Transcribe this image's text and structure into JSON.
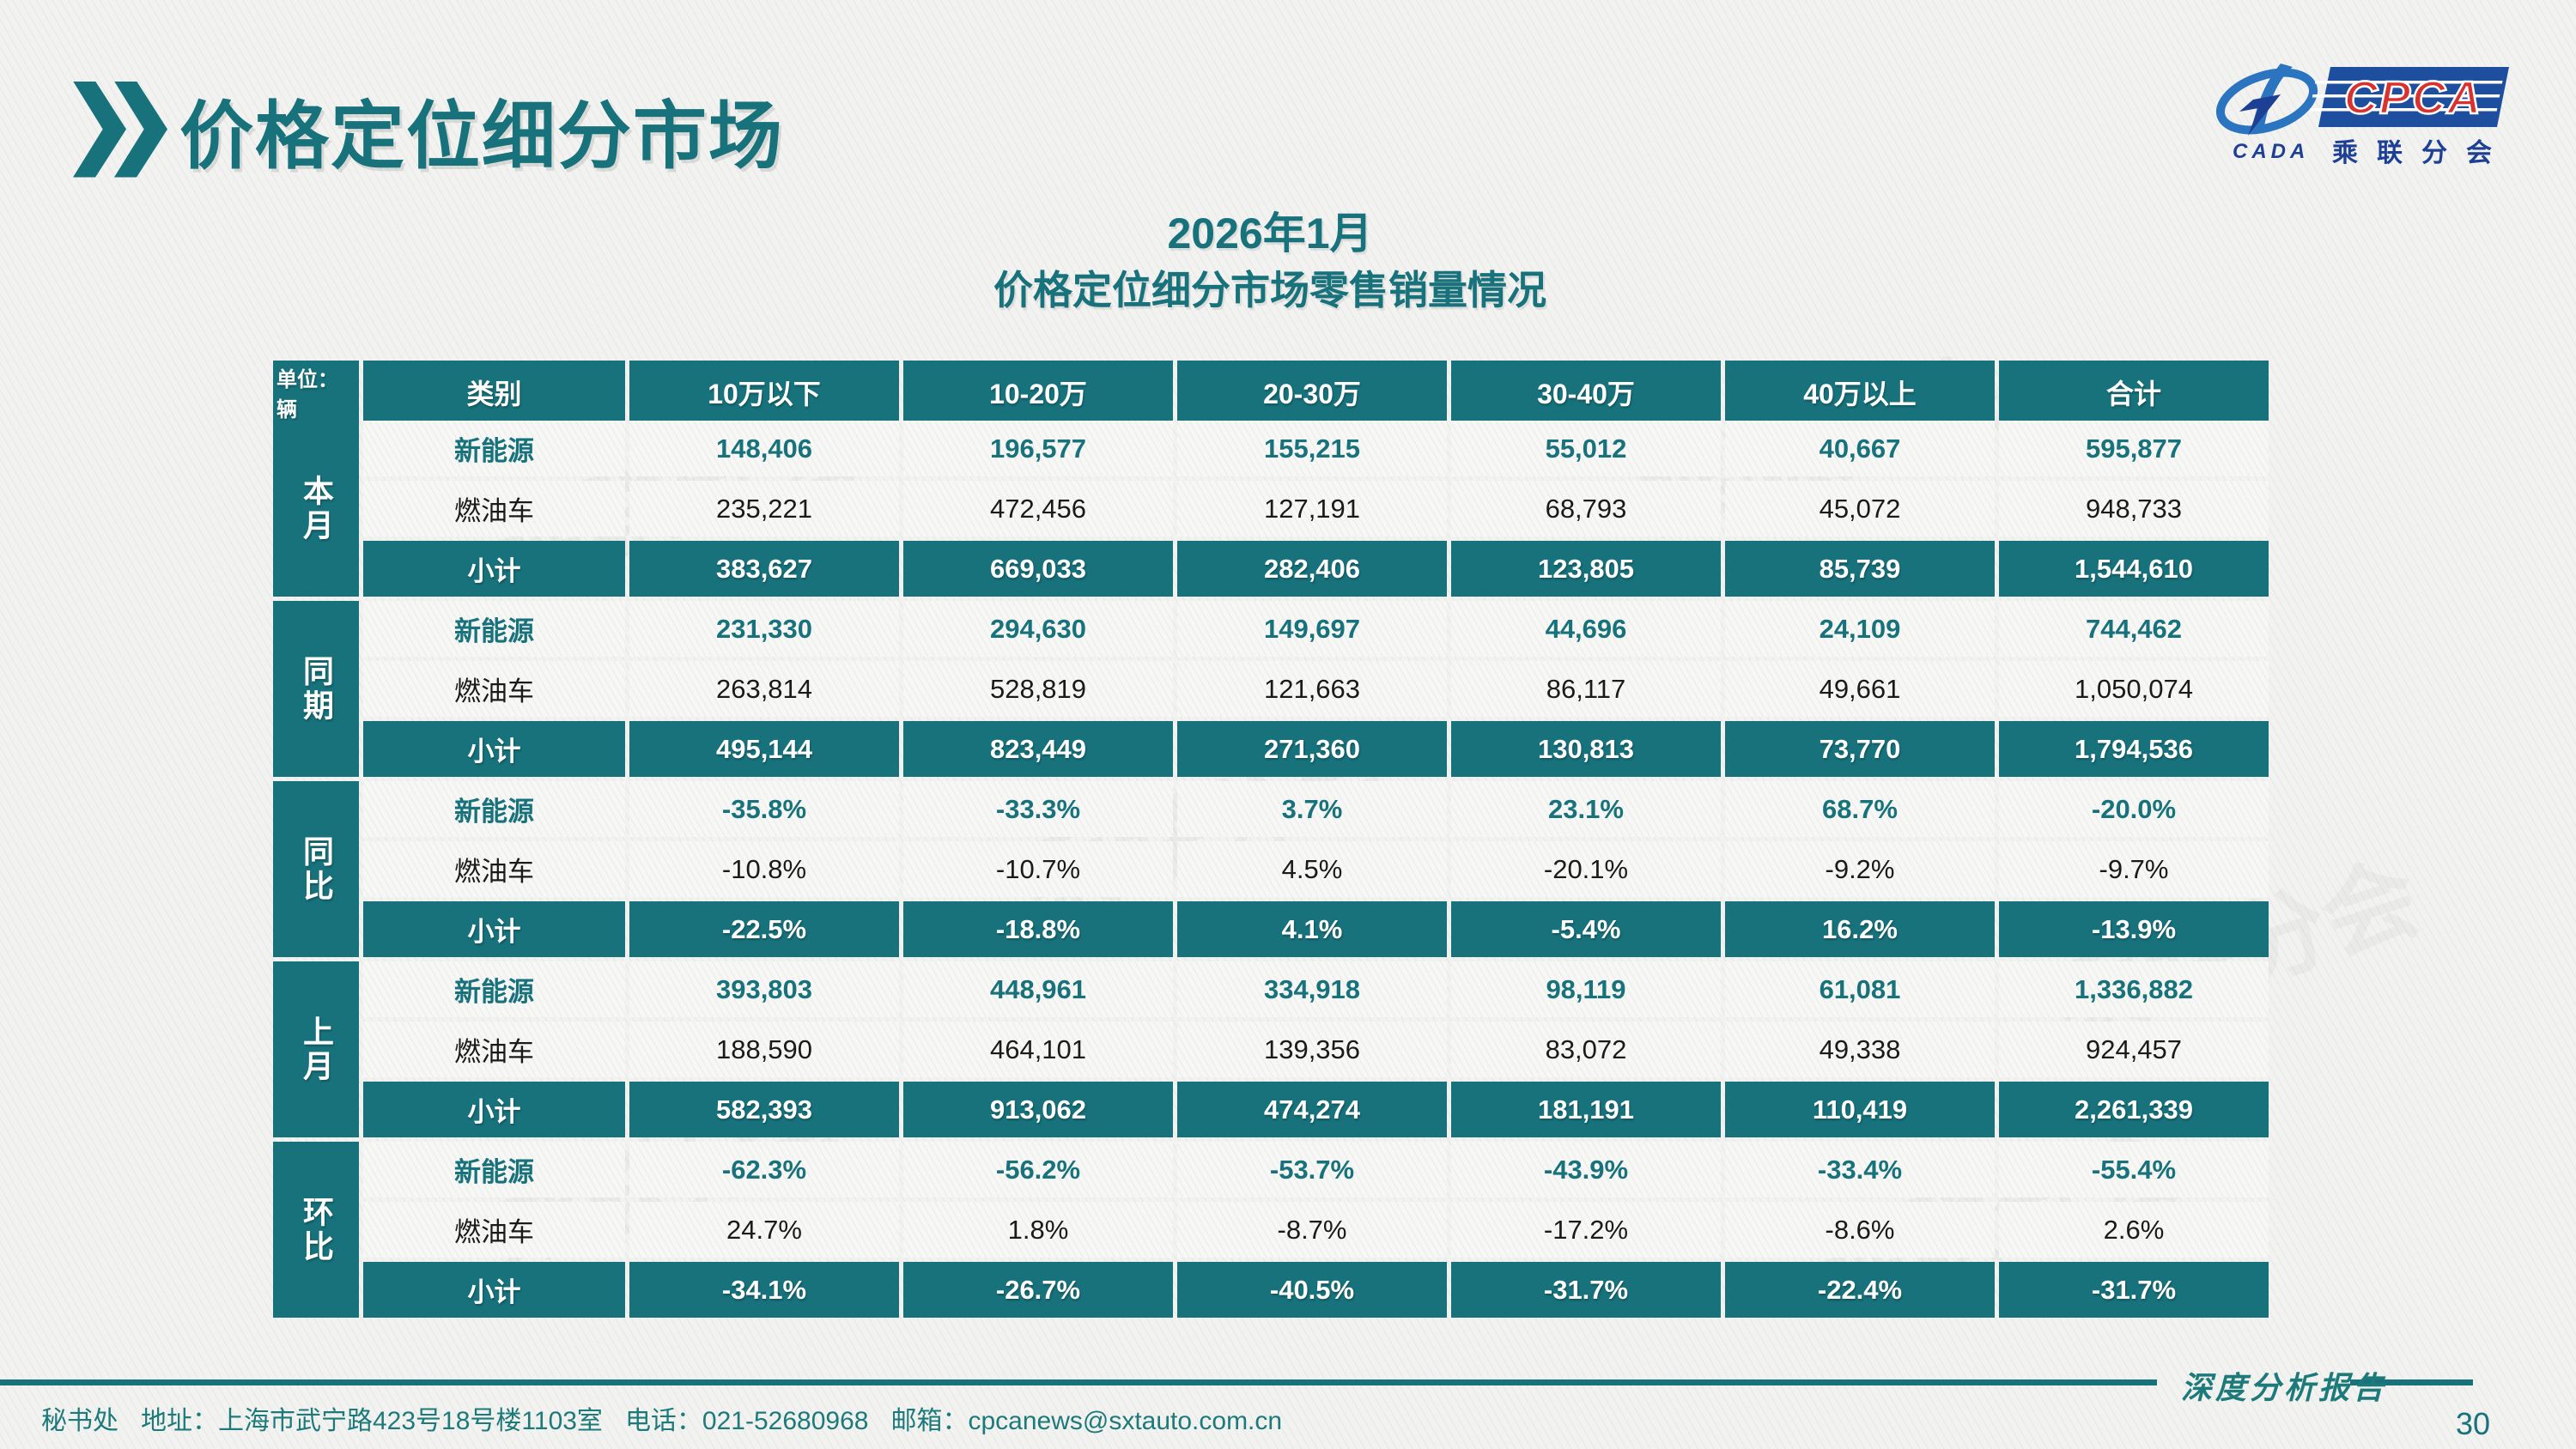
{
  "page": {
    "title": "价格定位细分市场",
    "report_label": "深度分析报告",
    "page_number": "30"
  },
  "logo": {
    "cada_text": "CADA",
    "cpca_text": "CPCA",
    "subtitle": "乘联分会"
  },
  "colors": {
    "accent_teal": "#17727c",
    "logo_blue": "#2b74c0",
    "logo_dark_blue": "#1d3f94",
    "logo_red": "#d93030",
    "ice_text": "#1a1a1a",
    "subtotal_text": "#ffffff"
  },
  "table": {
    "title_line1": "2026年1月",
    "title_line2": "价格定位细分市场零售销量情况",
    "unit_label": "单位：辆",
    "headers": [
      "类别",
      "10万以下",
      "10-20万",
      "20-30万",
      "30-40万",
      "40万以上",
      "合计"
    ],
    "groups": [
      {
        "label": "本月",
        "rows": [
          {
            "category": "新能源",
            "type": "nev",
            "values": [
              "148,406",
              "196,577",
              "155,215",
              "55,012",
              "40,667",
              "595,877"
            ]
          },
          {
            "category": "燃油车",
            "type": "ice",
            "values": [
              "235,221",
              "472,456",
              "127,191",
              "68,793",
              "45,072",
              "948,733"
            ]
          },
          {
            "category": "小计",
            "type": "subtotal",
            "values": [
              "383,627",
              "669,033",
              "282,406",
              "123,805",
              "85,739",
              "1,544,610"
            ]
          }
        ]
      },
      {
        "label": "同期",
        "rows": [
          {
            "category": "新能源",
            "type": "nev",
            "values": [
              "231,330",
              "294,630",
              "149,697",
              "44,696",
              "24,109",
              "744,462"
            ]
          },
          {
            "category": "燃油车",
            "type": "ice",
            "values": [
              "263,814",
              "528,819",
              "121,663",
              "86,117",
              "49,661",
              "1,050,074"
            ]
          },
          {
            "category": "小计",
            "type": "subtotal",
            "values": [
              "495,144",
              "823,449",
              "271,360",
              "130,813",
              "73,770",
              "1,794,536"
            ]
          }
        ]
      },
      {
        "label": "同比",
        "rows": [
          {
            "category": "新能源",
            "type": "nev",
            "values": [
              "-35.8%",
              "-33.3%",
              "3.7%",
              "23.1%",
              "68.7%",
              "-20.0%"
            ]
          },
          {
            "category": "燃油车",
            "type": "ice",
            "values": [
              "-10.8%",
              "-10.7%",
              "4.5%",
              "-20.1%",
              "-9.2%",
              "-9.7%"
            ]
          },
          {
            "category": "小计",
            "type": "subtotal",
            "values": [
              "-22.5%",
              "-18.8%",
              "4.1%",
              "-5.4%",
              "16.2%",
              "-13.9%"
            ]
          }
        ]
      },
      {
        "label": "上月",
        "rows": [
          {
            "category": "新能源",
            "type": "nev",
            "values": [
              "393,803",
              "448,961",
              "334,918",
              "98,119",
              "61,081",
              "1,336,882"
            ]
          },
          {
            "category": "燃油车",
            "type": "ice",
            "values": [
              "188,590",
              "464,101",
              "139,356",
              "83,072",
              "49,338",
              "924,457"
            ]
          },
          {
            "category": "小计",
            "type": "subtotal",
            "values": [
              "582,393",
              "913,062",
              "474,274",
              "181,191",
              "110,419",
              "2,261,339"
            ]
          }
        ]
      },
      {
        "label": "环比",
        "rows": [
          {
            "category": "新能源",
            "type": "nev",
            "values": [
              "-62.3%",
              "-56.2%",
              "-53.7%",
              "-43.9%",
              "-33.4%",
              "-55.4%"
            ]
          },
          {
            "category": "燃油车",
            "type": "ice",
            "values": [
              "24.7%",
              "1.8%",
              "-8.7%",
              "-17.2%",
              "-8.6%",
              "2.6%"
            ]
          },
          {
            "category": "小计",
            "type": "subtotal",
            "values": [
              "-34.1%",
              "-26.7%",
              "-40.5%",
              "-31.7%",
              "-22.4%",
              "-31.7%"
            ]
          }
        ]
      }
    ]
  },
  "footer": {
    "org": "秘书处",
    "address": "地址：上海市武宁路423号18号楼1103室",
    "phone": "电话：021-52680968",
    "email": "邮箱：cpcanews@sxtauto.com.cn"
  }
}
